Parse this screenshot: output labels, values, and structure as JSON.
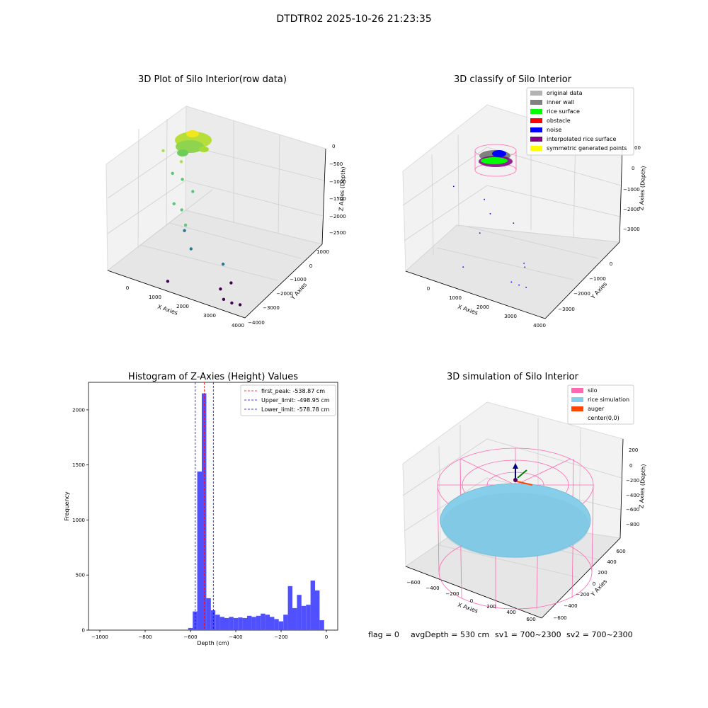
{
  "suptitle": "DTDTR02 2025-10-26 21:23:35",
  "footer": {
    "flag": "flag = 0",
    "avg_depth": "avgDepth = 530 cm",
    "sv1": "sv1 = 700~2300",
    "sv2": "sv2 = 700~2300"
  },
  "chart_data": [
    {
      "type": "scatter",
      "projection": "3d",
      "title": "3D Plot of Silo Interior(row data)",
      "xlabel": "X Axies",
      "ylabel": "Y Axies",
      "zlabel": "Z Axies (Depth)",
      "x_ticks": [
        "0",
        "1000",
        "2000",
        "3000",
        "4000"
      ],
      "y_ticks": [
        "1000",
        "0",
        "−1000",
        "−2000",
        "−3000",
        "−4000"
      ],
      "z_ticks": [
        "0",
        "−500",
        "−1000",
        "−1500",
        "−2000",
        "−2500"
      ],
      "colormap": "viridis",
      "colors": {
        "dense_top": "#a8e04a",
        "mid": "#5ec57a",
        "low": "#2a788e",
        "deep": "#440154"
      },
      "points": [
        {
          "x": 500,
          "y": -400,
          "z": -250
        },
        {
          "x": 1400,
          "y": -100,
          "z": -400
        },
        {
          "x": 900,
          "y": -500,
          "z": -650
        },
        {
          "x": 1300,
          "y": -700,
          "z": -700
        },
        {
          "x": 1800,
          "y": -600,
          "z": -900
        },
        {
          "x": 800,
          "y": -1200,
          "z": -1200
        },
        {
          "x": 1200,
          "y": -1000,
          "z": -1300
        },
        {
          "x": 1400,
          "y": -900,
          "z": -1600
        },
        {
          "x": 1300,
          "y": -1100,
          "z": -1700
        },
        {
          "x": 1500,
          "y": -1500,
          "z": -2000
        },
        {
          "x": 3400,
          "y": 300,
          "z": -2300
        },
        {
          "x": 2700,
          "y": -2100,
          "z": -2600
        },
        {
          "x": 3400,
          "y": -1200,
          "z": -2500
        },
        {
          "x": 200,
          "y": -2500,
          "z": -2700
        },
        {
          "x": 2600,
          "y": -3100,
          "z": -2700
        },
        {
          "x": 2900,
          "y": -3400,
          "z": -2700
        },
        {
          "x": 3300,
          "y": -3300,
          "z": -2700
        }
      ]
    },
    {
      "type": "scatter",
      "projection": "3d",
      "title": "3D classify of Silo Interior",
      "xlabel": "X Axies",
      "ylabel": "Y Axies",
      "zlabel": "Z Axies (Depth)",
      "x_ticks": [
        "0",
        "1000",
        "2000",
        "3000",
        "4000"
      ],
      "y_ticks": [
        "0",
        "−1000",
        "−2000",
        "−3000"
      ],
      "z_ticks": [
        "0",
        "−1000",
        "−2000",
        "−3000"
      ],
      "z_tick_partial": "00",
      "legend": {
        "location": "upper right",
        "entries": [
          {
            "label": "original data",
            "color": "#b3b3b3"
          },
          {
            "label": "inner wall",
            "color": "#808080"
          },
          {
            "label": "rice surface",
            "color": "#00ff00"
          },
          {
            "label": "obstacle",
            "color": "#ff0000"
          },
          {
            "label": "noise",
            "color": "#0000ff"
          },
          {
            "label": "interpolated rice surface",
            "color": "#800080"
          },
          {
            "label": "symmetric generated points",
            "color": "#ffff00"
          }
        ]
      },
      "noise_points": [
        {
          "x": 300,
          "y": -200,
          "z": -600
        },
        {
          "x": 1600,
          "y": -600,
          "z": -700
        },
        {
          "x": 1800,
          "y": -900,
          "z": -1100
        },
        {
          "x": 3000,
          "y": -300,
          "z": -1300
        },
        {
          "x": 1200,
          "y": -1400,
          "z": -1800
        },
        {
          "x": 200,
          "y": -2400,
          "z": -3000
        },
        {
          "x": 2300,
          "y": -2800,
          "z": -3000
        },
        {
          "x": 2600,
          "y": -3000,
          "z": -3000
        },
        {
          "x": 2900,
          "y": -3100,
          "z": -3000
        },
        {
          "x": 3300,
          "y": -1200,
          "z": -2600
        },
        {
          "x": 3600,
          "y": 200,
          "z": -2700
        }
      ]
    },
    {
      "type": "bar",
      "title": "Histogram of Z-Axies (Height) Values",
      "xlabel": "Depth (cm)",
      "ylabel": "Frequency",
      "xlim": [
        -1050,
        50
      ],
      "ylim": [
        0,
        2250
      ],
      "x_ticks": [
        -1000,
        -800,
        -600,
        -400,
        -200,
        0
      ],
      "x_tick_labels": [
        "−1000",
        "−800",
        "−600",
        "−400",
        "−200",
        "0"
      ],
      "y_ticks": [
        0,
        500,
        1000,
        1500,
        2000
      ],
      "y_tick_labels": [
        "0",
        "500",
        "1000",
        "1500",
        "2000"
      ],
      "bar_color": "#5050ff",
      "bin_width": 20,
      "bins_start": [
        -610,
        -590,
        -570,
        -550,
        -530,
        -510,
        -490,
        -470,
        -450,
        -430,
        -410,
        -390,
        -370,
        -350,
        -330,
        -310,
        -290,
        -270,
        -250,
        -230,
        -210,
        -190,
        -170,
        -150,
        -130,
        -110,
        -90,
        -70,
        -50,
        -30,
        -10
      ],
      "values": [
        20,
        170,
        1440,
        2150,
        290,
        180,
        140,
        120,
        110,
        120,
        110,
        115,
        110,
        130,
        120,
        130,
        150,
        140,
        120,
        100,
        80,
        140,
        400,
        200,
        320,
        220,
        230,
        450,
        360,
        90,
        0
      ],
      "lines": [
        {
          "label": "first_peak: -538.87 cm",
          "x": -538.87,
          "color": "#ff0000"
        },
        {
          "label": "Upper_limit: -498.95 cm",
          "x": -498.95,
          "color": "#0000ff"
        },
        {
          "label": "Lower_limit: -578.78 cm",
          "x": -578.78,
          "color": "#0000ff"
        }
      ],
      "legend_location": "upper right"
    },
    {
      "type": "surface",
      "projection": "3d",
      "title": "3D simulation of Silo Interior",
      "xlabel": "X Axies",
      "ylabel": "Y Axies",
      "zlabel": "Z Axies (Depth)",
      "x_ticks": [
        "−600",
        "−400",
        "−200",
        "0",
        "200",
        "400",
        "600"
      ],
      "y_ticks": [
        "600",
        "400",
        "200",
        "0",
        "−200",
        "−400",
        "−600"
      ],
      "z_ticks": [
        "200",
        "0",
        "−200",
        "−400",
        "−600",
        "−800"
      ],
      "legend": {
        "location": "upper right",
        "entries": [
          {
            "label": "silo",
            "color": "#ff69b4"
          },
          {
            "label": "rice simulation",
            "color": "#87ceeb"
          },
          {
            "label": "auger",
            "color": "#ff4500"
          },
          {
            "label": "center(0,0)",
            "color": ""
          }
        ]
      }
    }
  ]
}
